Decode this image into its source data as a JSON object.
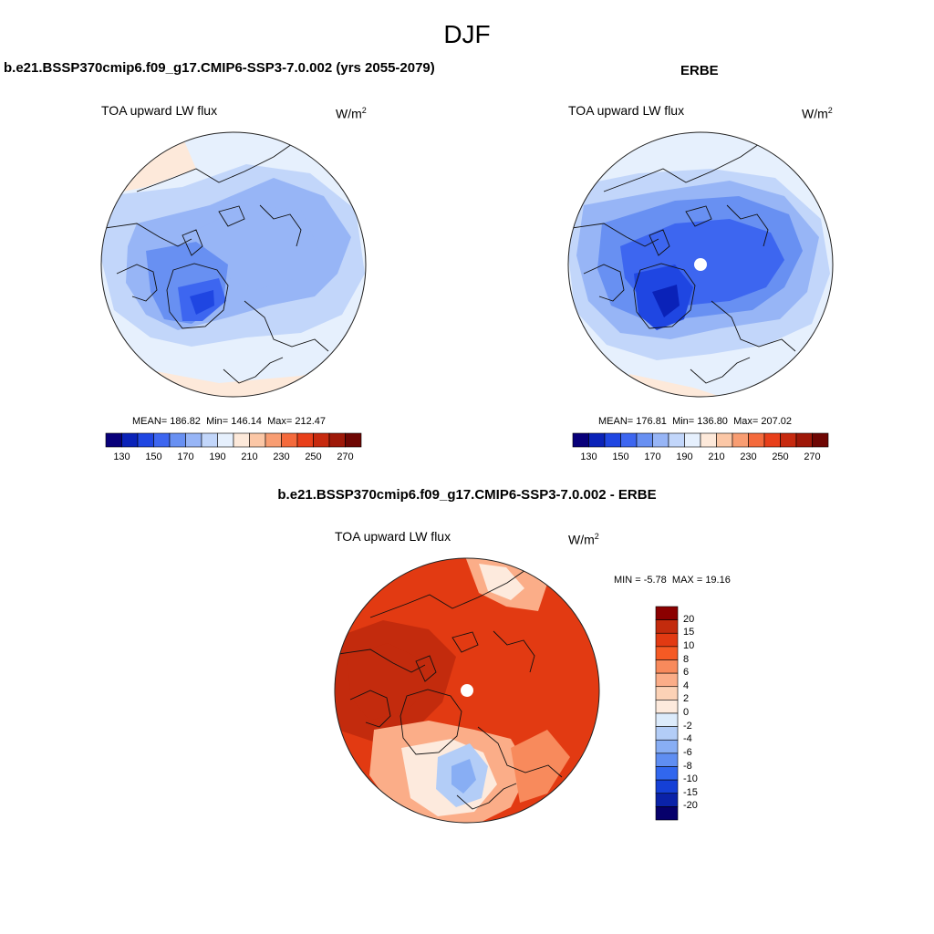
{
  "season": "DJF",
  "panels": [
    {
      "title": "b.e21.BSSP370cmip6.f09_g17.CMIP6-SSP3-7.0.002 (yrs 2055-2079)",
      "variable": "TOA upward LW flux",
      "units": "W/m",
      "units_sup": "2",
      "stats": {
        "mean_label": "MEAN=",
        "mean": "186.82",
        "min_label": "Min=",
        "min": "146.14",
        "max_label": "Max=",
        "max": "212.47"
      }
    },
    {
      "title": "ERBE",
      "variable": "TOA upward LW flux",
      "units": "W/m",
      "units_sup": "2",
      "stats": {
        "mean_label": "MEAN=",
        "mean": "176.81",
        "min_label": "Min=",
        "min": "136.80",
        "max_label": "Max=",
        "max": "207.02"
      }
    },
    {
      "title": "b.e21.BSSP370cmip6.f09_g17.CMIP6-SSP3-7.0.002 - ERBE",
      "variable": "TOA upward LW flux",
      "units": "W/m",
      "units_sup": "2",
      "stats": {
        "min_label": "MIN =",
        "min": "-5.78",
        "max_label": "MAX =",
        "max": "19.16"
      }
    }
  ],
  "chart_data": [
    {
      "type": "heatmap",
      "projection": "north polar stereographic",
      "title": "b.e21.BSSP370cmip6.f09_g17.CMIP6-SSP3-7.0.002 (yrs 2055-2079)",
      "variable": "TOA upward LW flux",
      "units": "W/m2",
      "mean": 186.82,
      "min": 146.14,
      "max": 212.47,
      "levels": [
        130,
        140,
        150,
        160,
        170,
        180,
        190,
        200,
        210,
        220,
        230,
        240,
        250,
        260,
        270
      ],
      "tick_labels": [
        "130",
        "150",
        "170",
        "190",
        "210",
        "230",
        "250",
        "270"
      ],
      "colors": [
        "#08007a",
        "#0a22b8",
        "#1f46e2",
        "#3d66f0",
        "#6890f2",
        "#97b5f6",
        "#c2d6fa",
        "#e6f0fd",
        "#fde9da",
        "#fbc7a6",
        "#f89d72",
        "#f46a3c",
        "#e83f1a",
        "#c72a0f",
        "#9e1808",
        "#6e0603"
      ]
    },
    {
      "type": "heatmap",
      "projection": "north polar stereographic",
      "title": "ERBE",
      "variable": "TOA upward LW flux",
      "units": "W/m2",
      "mean": 176.81,
      "min": 136.8,
      "max": 207.02,
      "levels": [
        130,
        140,
        150,
        160,
        170,
        180,
        190,
        200,
        210,
        220,
        230,
        240,
        250,
        260,
        270
      ],
      "tick_labels": [
        "130",
        "150",
        "170",
        "190",
        "210",
        "230",
        "250",
        "270"
      ],
      "colors": [
        "#08007a",
        "#0a22b8",
        "#1f46e2",
        "#3d66f0",
        "#6890f2",
        "#97b5f6",
        "#c2d6fa",
        "#e6f0fd",
        "#fde9da",
        "#fbc7a6",
        "#f89d72",
        "#f46a3c",
        "#e83f1a",
        "#c72a0f",
        "#9e1808",
        "#6e0603"
      ]
    },
    {
      "type": "heatmap",
      "projection": "north polar stereographic",
      "title": "b.e21.BSSP370cmip6.f09_g17.CMIP6-SSP3-7.0.002 - ERBE",
      "variable": "TOA upward LW flux",
      "units": "W/m2",
      "min": -5.78,
      "max": 19.16,
      "levels": [
        20,
        15,
        10,
        8,
        6,
        4,
        2,
        0,
        -2,
        -4,
        -6,
        -8,
        -10,
        -15,
        -20
      ],
      "tick_labels": [
        "20",
        "15",
        "10",
        "8",
        "6",
        "4",
        "2",
        "0",
        "-2",
        "-4",
        "-6",
        "-8",
        "-10",
        "-15",
        "-20"
      ],
      "colors": [
        "#8b0000",
        "#c32b0d",
        "#e23a12",
        "#f55a24",
        "#f88a5c",
        "#fbad88",
        "#fcd2b6",
        "#fdeadd",
        "#dcebfb",
        "#b3cdf7",
        "#88aef4",
        "#5f8ef2",
        "#3167ee",
        "#1540d6",
        "#0a22a8",
        "#06006b"
      ]
    }
  ]
}
